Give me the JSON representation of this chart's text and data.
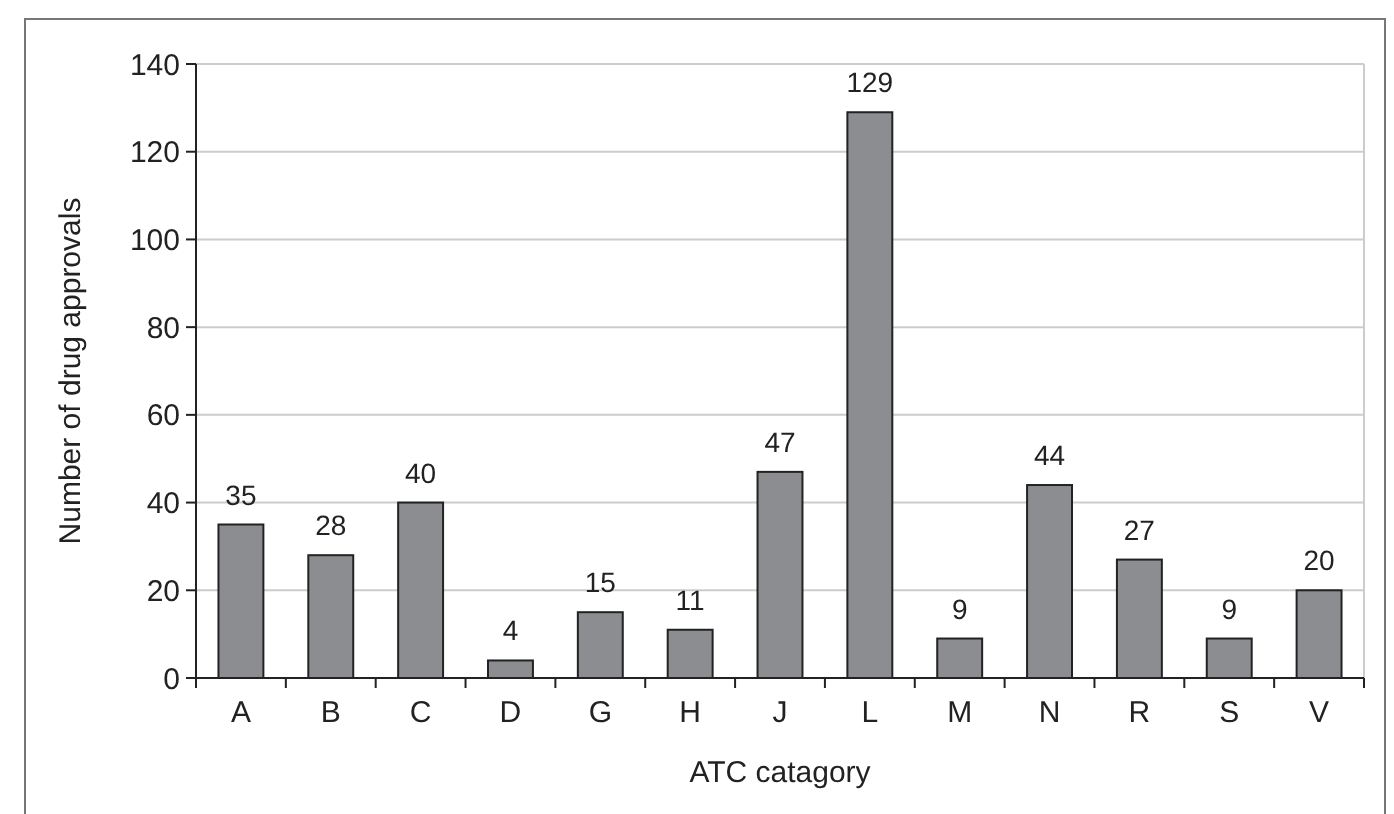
{
  "chart_data": {
    "type": "bar",
    "xlabel": "ATC catagory",
    "ylabel": "Number of drug approvals",
    "categories": [
      "A",
      "B",
      "C",
      "D",
      "G",
      "H",
      "J",
      "L",
      "M",
      "N",
      "R",
      "S",
      "V"
    ],
    "values": [
      35,
      28,
      40,
      4,
      15,
      11,
      47,
      129,
      9,
      44,
      27,
      9,
      20
    ],
    "color": "#8c8d90",
    "ylim": [
      0,
      140
    ],
    "yticks": [
      0,
      20,
      40,
      60,
      80,
      100,
      120,
      140
    ],
    "grid": "y",
    "data_labels": true
  }
}
